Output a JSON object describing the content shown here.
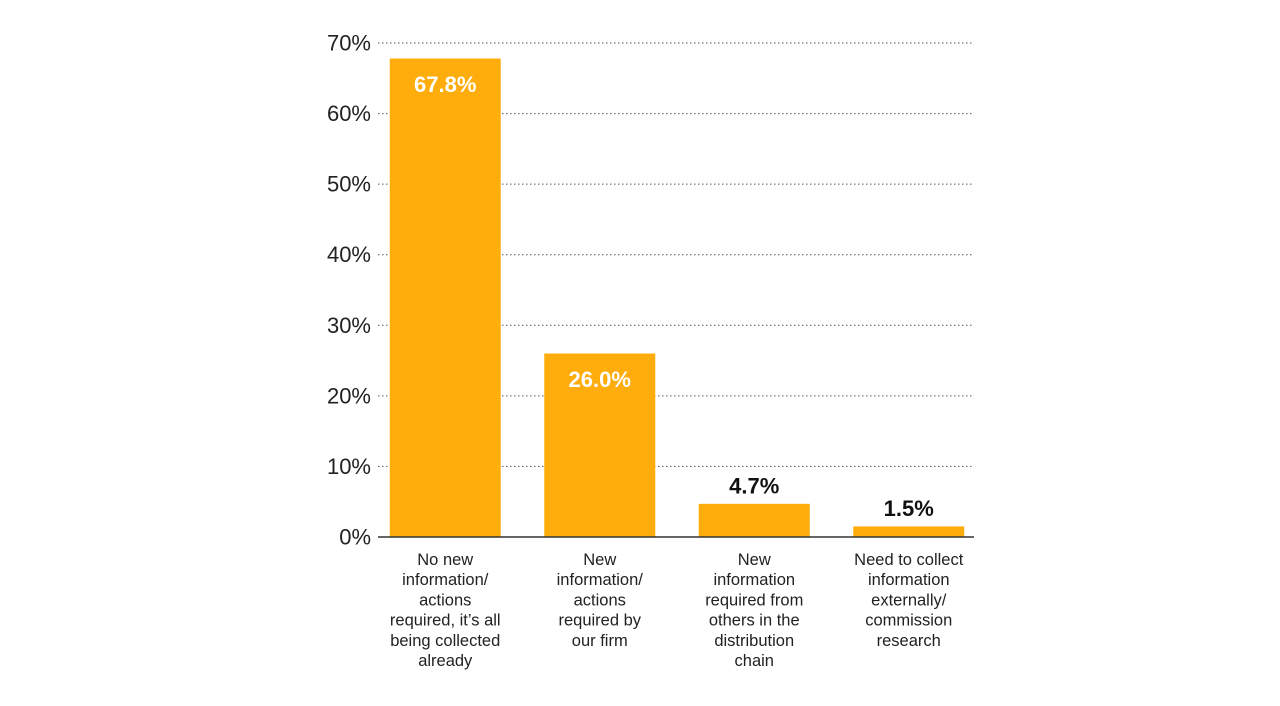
{
  "chart_data": {
    "type": "bar",
    "categories": [
      [
        "No new",
        "information/",
        "actions",
        "required, it’s all",
        "being collected",
        "already"
      ],
      [
        "New",
        "information/",
        "actions",
        "required by",
        "our firm"
      ],
      [
        "New",
        "information",
        "required from",
        "others in the",
        "distribution",
        "chain"
      ],
      [
        "Need to collect",
        "information",
        "externally/",
        "commission",
        "research"
      ]
    ],
    "values": [
      67.8,
      26.0,
      4.7,
      1.5
    ],
    "data_labels": [
      "67.8%",
      "26.0%",
      "4.7%",
      "1.5%"
    ],
    "ylim": [
      0,
      70
    ],
    "yticks": [
      0,
      10,
      20,
      30,
      40,
      50,
      60,
      70
    ],
    "ytick_labels": [
      "0%",
      "10%",
      "20%",
      "30%",
      "40%",
      "50%",
      "60%",
      "70%"
    ],
    "grid": true,
    "title": "",
    "xlabel": "",
    "ylabel": "",
    "colors": {
      "bar": "#FFAD0D",
      "label_inside": "#ffffff",
      "label_outside": "#111111"
    }
  }
}
